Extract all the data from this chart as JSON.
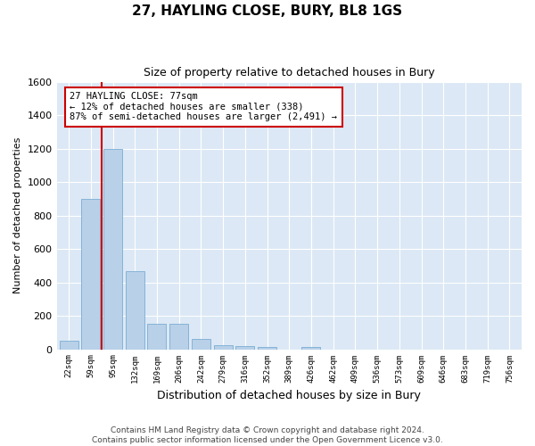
{
  "title": "27, HAYLING CLOSE, BURY, BL8 1GS",
  "subtitle": "Size of property relative to detached houses in Bury",
  "xlabel": "Distribution of detached houses by size in Bury",
  "ylabel": "Number of detached properties",
  "bins": [
    "22sqm",
    "59sqm",
    "95sqm",
    "132sqm",
    "169sqm",
    "206sqm",
    "242sqm",
    "279sqm",
    "316sqm",
    "352sqm",
    "389sqm",
    "426sqm",
    "462sqm",
    "499sqm",
    "536sqm",
    "573sqm",
    "609sqm",
    "646sqm",
    "683sqm",
    "719sqm",
    "756sqm"
  ],
  "values": [
    50,
    900,
    1200,
    470,
    155,
    155,
    60,
    25,
    20,
    15,
    0,
    15,
    0,
    0,
    0,
    0,
    0,
    0,
    0,
    0,
    0
  ],
  "bar_color": "#b8d0e8",
  "bar_edge_color": "#7aadd4",
  "vline_x_bin": 1.5,
  "vline_color": "#cc0000",
  "annotation_text": "27 HAYLING CLOSE: 77sqm\n← 12% of detached houses are smaller (338)\n87% of semi-detached houses are larger (2,491) →",
  "annotation_box_color": "#cc0000",
  "ylim": [
    0,
    1600
  ],
  "yticks": [
    0,
    200,
    400,
    600,
    800,
    1000,
    1200,
    1400,
    1600
  ],
  "bg_color": "#dce8f5",
  "footer": "Contains HM Land Registry data © Crown copyright and database right 2024.\nContains public sector information licensed under the Open Government Licence v3.0."
}
